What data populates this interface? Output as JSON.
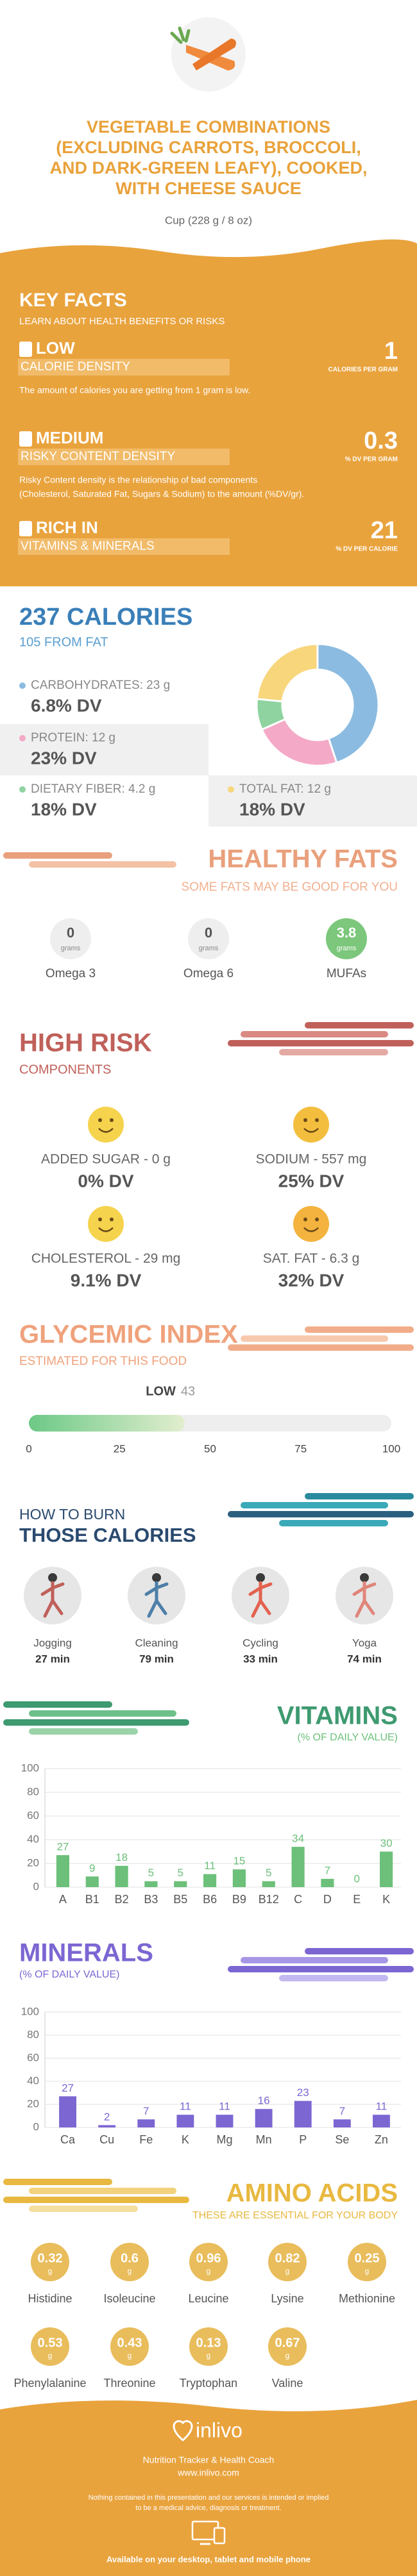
{
  "header": {
    "title_lines": [
      "VEGETABLE COMBINATIONS",
      "(EXCLUDING CARROTS, BROCCOLI,",
      "AND DARK-GREEN LEAFY), COOKED,",
      "WITH CHEESE SAUCE"
    ],
    "serving": "Cup (228 g / 8 oz)"
  },
  "key_facts": {
    "title": "KEY FACTS",
    "subtitle": "LEARN ABOUT HEALTH BENEFITS OR RISKS",
    "items": [
      {
        "level": "LOW",
        "name": "CALORIE DENSITY",
        "description": [
          "The amount of calories you are getting from 1 gram is low."
        ],
        "value": 1,
        "unit": "CALORIES PER GRAM"
      },
      {
        "level": "MEDIUM",
        "name": "RISKY CONTENT DENSITY",
        "description": [
          "Risky Content density is the relationship of bad components",
          "(Cholesterol, Saturated Fat, Sugars & Sodium) to the amount (%DV/gr)."
        ],
        "value": 0.3,
        "unit": "% DV PER GRAM"
      },
      {
        "level": "RICH IN",
        "name": "VITAMINS & MINERALS",
        "value": 21,
        "unit": "% DV PER CALORIE"
      }
    ]
  },
  "calories": {
    "title": "237 CALORIES",
    "subtitle": "105 FROM FAT",
    "macros": [
      {
        "label": "CARBOHYDRATES: 23 g",
        "grams": 23,
        "dv": "6.8% DV",
        "color": "#8bbbe0"
      },
      {
        "label": "PROTEIN: 12 g",
        "grams": 12,
        "dv": "23% DV",
        "color": "#f4a9c6"
      },
      {
        "label": "DIETARY FIBER: 4.2 g",
        "grams": 4.2,
        "dv": "18% DV",
        "color": "#8fd3a0"
      },
      {
        "label": "TOTAL FAT: 12 g",
        "grams": 12,
        "dv": "18% DV",
        "color": "#f8d67c"
      }
    ]
  },
  "healthy_fats": {
    "title": "HEALTHY FATS",
    "subtitle": "SOME FATS MAY BE GOOD FOR YOU",
    "unit": "grams",
    "items": [
      {
        "name": "Omega 3",
        "value": 0
      },
      {
        "name": "Omega 6",
        "value": 0
      },
      {
        "name": "MUFAs",
        "value": 3.8
      }
    ]
  },
  "high_risk": {
    "title": "HIGH RISK",
    "subtitle": "COMPONENTS",
    "items": [
      {
        "label": "ADDED SUGAR - 0 g",
        "dv": "0% DV"
      },
      {
        "label": "SODIUM - 557 mg",
        "dv": "25% DV"
      },
      {
        "label": "CHOLESTEROL - 29 mg",
        "dv": "9.1% DV"
      },
      {
        "label": "SAT. FAT - 6.3 g",
        "dv": "32% DV"
      }
    ]
  },
  "glycemic": {
    "title": "GLYCEMIC INDEX",
    "subtitle": "ESTIMATED FOR THIS FOOD",
    "level": "LOW",
    "value": 43,
    "xlim": [
      0,
      100
    ],
    "xticks": [
      0,
      25,
      50,
      75,
      100
    ]
  },
  "burn": {
    "title_lines": [
      "HOW TO BURN",
      "THOSE CALORIES"
    ],
    "items": [
      {
        "name": "Jogging",
        "time": "27 min"
      },
      {
        "name": "Cleaning",
        "time": "79 min"
      },
      {
        "name": "Cycling",
        "time": "33 min"
      },
      {
        "name": "Yoga",
        "time": "74 min"
      }
    ]
  },
  "chart_data": [
    {
      "type": "bar",
      "title": "VITAMINS",
      "subtitle": "(% OF DAILY VALUE)",
      "categories": [
        "A",
        "B1",
        "B2",
        "B3",
        "B5",
        "B6",
        "B9",
        "B12",
        "C",
        "D",
        "E",
        "K"
      ],
      "values": [
        27,
        9,
        18,
        5,
        5,
        11,
        15,
        5,
        34,
        7,
        0,
        30
      ],
      "color": "#6cc07a",
      "ylim": [
        0,
        100
      ],
      "yticks": [
        0,
        20,
        40,
        60,
        80,
        100
      ],
      "grid": true
    },
    {
      "type": "bar",
      "title": "MINERALS",
      "subtitle": "(% OF DAILY VALUE)",
      "categories": [
        "Ca",
        "Cu",
        "Fe",
        "K",
        "Mg",
        "Mn",
        "P",
        "Se",
        "Zn"
      ],
      "values": [
        27,
        2,
        7,
        11,
        11,
        16,
        23,
        7,
        11
      ],
      "color": "#7c66d2",
      "ylim": [
        0,
        100
      ],
      "yticks": [
        0,
        20,
        40,
        60,
        80,
        100
      ],
      "grid": true
    }
  ],
  "amino_acids": {
    "title": "AMINO ACIDS",
    "subtitle": "THESE ARE ESSENTIAL FOR YOUR BODY",
    "unit": "g",
    "items": [
      {
        "name": "Histidine",
        "value": 0.32
      },
      {
        "name": "Isoleucine",
        "value": 0.6
      },
      {
        "name": "Leucine",
        "value": 0.96
      },
      {
        "name": "Lysine",
        "value": 0.82
      },
      {
        "name": "Methionine",
        "value": 0.25
      },
      {
        "name": "Phenylalanine",
        "value": 0.53
      },
      {
        "name": "Threonine",
        "value": 0.43
      },
      {
        "name": "Tryptophan",
        "value": 0.13
      },
      {
        "name": "Valine",
        "value": 0.67
      }
    ]
  },
  "footer": {
    "brand": "inlivo",
    "tagline": "Nutrition Tracker & Health Coach",
    "url": "www.inlivo.com",
    "disclaimer": [
      "Nothing contained in this presentation and our services is intended or implied",
      "to be a medical advice, diagnosis or treatment."
    ],
    "availability": "Available on your desktop, tablet and mobile phone"
  }
}
